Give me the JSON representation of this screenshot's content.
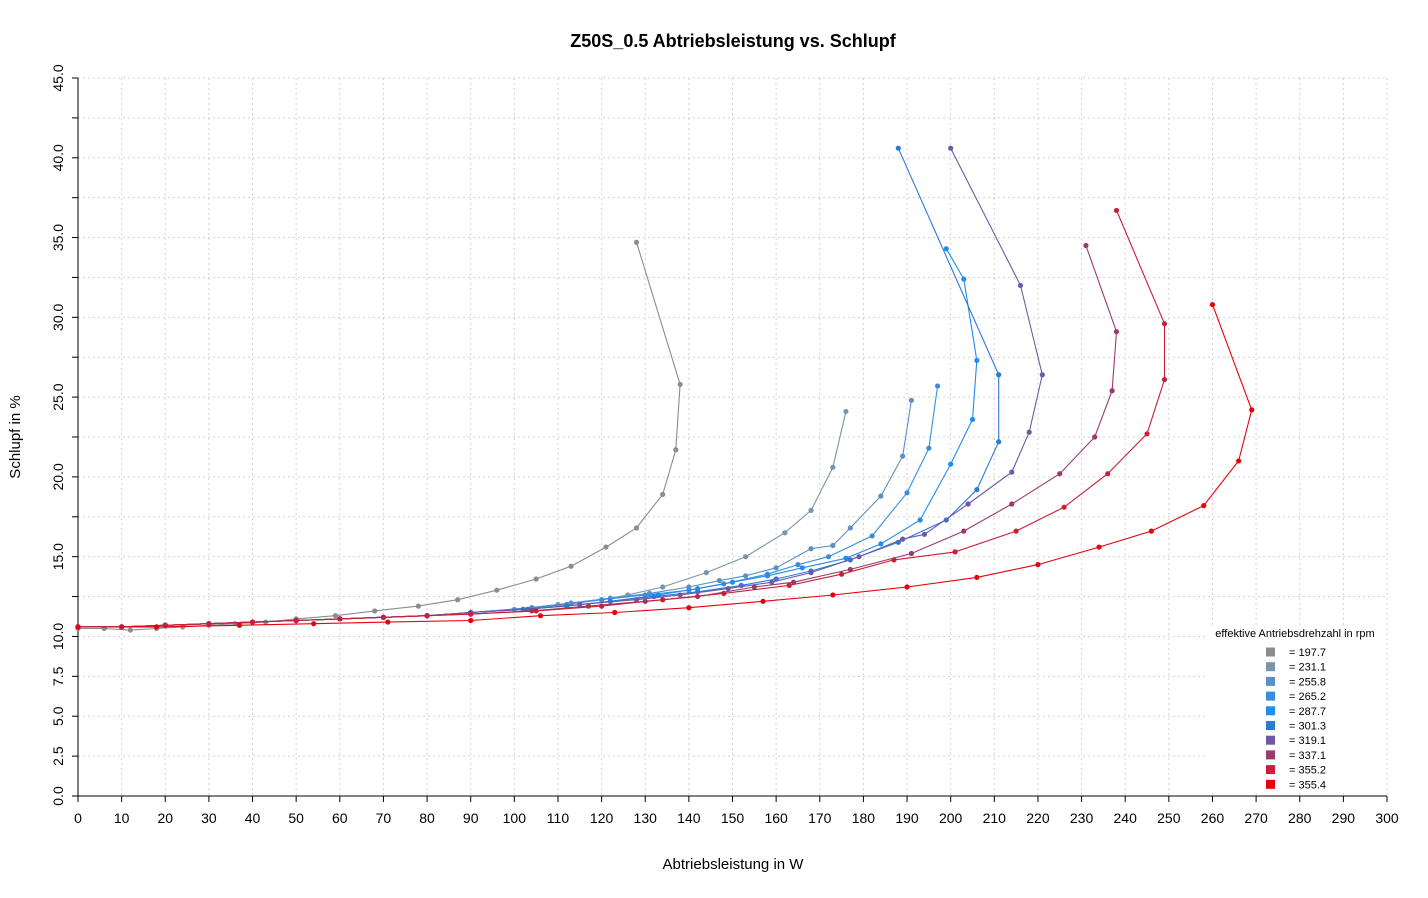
{
  "chart_data": {
    "type": "line",
    "title": "Z50S_0.5 Abtriebsleistung vs. Schlupf",
    "xlabel": "Abtriebsleistung in W",
    "ylabel": "Schlupf in %",
    "xlim": [
      0,
      300
    ],
    "ylim": [
      0,
      45
    ],
    "x_ticks": [
      "0",
      "10",
      "20",
      "30",
      "40",
      "50",
      "60",
      "70",
      "80",
      "90",
      "100",
      "110",
      "120",
      "130",
      "140",
      "150",
      "160",
      "170",
      "180",
      "190",
      "200",
      "210",
      "220",
      "230",
      "240",
      "250",
      "260",
      "270",
      "280",
      "290",
      "300"
    ],
    "y_ticks": [
      "0.0",
      "2.5",
      "5.0",
      "7.5",
      "10.0",
      "15.0",
      "20.0",
      "25.0",
      "30.0",
      "35.0",
      "40.0",
      "45.0"
    ],
    "grid": true,
    "legend_title": "effektive Antriebsdrehzahl in rpm",
    "legend_position": "bottom-right",
    "series": [
      {
        "name": "= 197.7",
        "color": "#8c8c8c",
        "points": [
          [
            0,
            10.5
          ],
          [
            6,
            10.5
          ],
          [
            12,
            10.4
          ],
          [
            18,
            10.5
          ],
          [
            24,
            10.6
          ],
          [
            30,
            10.7
          ],
          [
            36,
            10.8
          ],
          [
            43,
            10.9
          ],
          [
            50,
            11.1
          ],
          [
            59,
            11.3
          ],
          [
            68,
            11.6
          ],
          [
            78,
            11.9
          ],
          [
            87,
            12.3
          ],
          [
            96,
            12.9
          ],
          [
            105,
            13.6
          ],
          [
            113,
            14.4
          ],
          [
            121,
            15.6
          ],
          [
            128,
            16.8
          ],
          [
            134,
            18.9
          ],
          [
            137,
            21.7
          ],
          [
            138,
            25.8
          ],
          [
            128,
            34.7
          ]
        ]
      },
      {
        "name": "= 231.1",
        "color": "#7a95aa",
        "points": [
          [
            0,
            10.6
          ],
          [
            10,
            10.6
          ],
          [
            20,
            10.7
          ],
          [
            30,
            10.8
          ],
          [
            40,
            10.9
          ],
          [
            50,
            11.0
          ],
          [
            60,
            11.1
          ],
          [
            70,
            11.2
          ],
          [
            80,
            11.3
          ],
          [
            90,
            11.5
          ],
          [
            100,
            11.7
          ],
          [
            110,
            12.0
          ],
          [
            120,
            12.3
          ],
          [
            126,
            12.6
          ],
          [
            134,
            13.1
          ],
          [
            144,
            14.0
          ],
          [
            153,
            15.0
          ],
          [
            162,
            16.5
          ],
          [
            168,
            17.9
          ],
          [
            173,
            20.6
          ],
          [
            176,
            24.1
          ]
        ]
      },
      {
        "name": "= 255.8",
        "color": "#5b8fc5",
        "points": [
          [
            0,
            10.6
          ],
          [
            10,
            10.6
          ],
          [
            20,
            10.7
          ],
          [
            30,
            10.8
          ],
          [
            40,
            10.9
          ],
          [
            50,
            11.0
          ],
          [
            60,
            11.1
          ],
          [
            70,
            11.2
          ],
          [
            80,
            11.3
          ],
          [
            90,
            11.5
          ],
          [
            104,
            11.8
          ],
          [
            113,
            12.1
          ],
          [
            122,
            12.4
          ],
          [
            131,
            12.7
          ],
          [
            140,
            13.1
          ],
          [
            147,
            13.5
          ],
          [
            153,
            13.8
          ],
          [
            160,
            14.3
          ],
          [
            168,
            15.5
          ],
          [
            173,
            15.7
          ],
          [
            177,
            16.8
          ],
          [
            184,
            18.8
          ],
          [
            189,
            21.3
          ],
          [
            191,
            24.8
          ]
        ]
      },
      {
        "name": "= 265.2",
        "color": "#3a8ddb",
        "points": [
          [
            0,
            10.6
          ],
          [
            10,
            10.6
          ],
          [
            20,
            10.7
          ],
          [
            30,
            10.8
          ],
          [
            40,
            10.9
          ],
          [
            50,
            11.0
          ],
          [
            60,
            11.1
          ],
          [
            70,
            11.2
          ],
          [
            80,
            11.3
          ],
          [
            90,
            11.5
          ],
          [
            104,
            11.8
          ],
          [
            112,
            12.0
          ],
          [
            120,
            12.3
          ],
          [
            130,
            12.6
          ],
          [
            140,
            12.9
          ],
          [
            148,
            13.3
          ],
          [
            158,
            13.9
          ],
          [
            165,
            14.5
          ],
          [
            172,
            15.0
          ],
          [
            182,
            16.3
          ],
          [
            190,
            19.0
          ],
          [
            195,
            21.8
          ],
          [
            197,
            25.7
          ]
        ]
      },
      {
        "name": "= 287.7",
        "color": "#1f8ef0",
        "points": [
          [
            0,
            10.6
          ],
          [
            10,
            10.6
          ],
          [
            20,
            10.7
          ],
          [
            30,
            10.8
          ],
          [
            40,
            10.9
          ],
          [
            50,
            11.0
          ],
          [
            60,
            11.1
          ],
          [
            70,
            11.2
          ],
          [
            80,
            11.3
          ],
          [
            90,
            11.5
          ],
          [
            102,
            11.7
          ],
          [
            112,
            11.9
          ],
          [
            122,
            12.2
          ],
          [
            133,
            12.6
          ],
          [
            142,
            13.0
          ],
          [
            150,
            13.4
          ],
          [
            158,
            13.8
          ],
          [
            166,
            14.3
          ],
          [
            176,
            14.9
          ],
          [
            184,
            15.8
          ],
          [
            193,
            17.3
          ],
          [
            200,
            20.8
          ],
          [
            205,
            23.6
          ],
          [
            206,
            27.3
          ],
          [
            203,
            32.4
          ],
          [
            199,
            34.3
          ]
        ]
      },
      {
        "name": "= 301.3",
        "color": "#2f78d6",
        "points": [
          [
            0,
            10.6
          ],
          [
            10,
            10.6
          ],
          [
            20,
            10.7
          ],
          [
            30,
            10.8
          ],
          [
            40,
            10.9
          ],
          [
            50,
            11.0
          ],
          [
            60,
            11.1
          ],
          [
            70,
            11.2
          ],
          [
            80,
            11.3
          ],
          [
            90,
            11.5
          ],
          [
            102,
            11.7
          ],
          [
            112,
            11.9
          ],
          [
            122,
            12.2
          ],
          [
            132,
            12.5
          ],
          [
            142,
            12.8
          ],
          [
            152,
            13.2
          ],
          [
            160,
            13.6
          ],
          [
            168,
            14.1
          ],
          [
            177,
            14.8
          ],
          [
            188,
            15.9
          ],
          [
            199,
            17.3
          ],
          [
            206,
            19.2
          ],
          [
            211,
            22.2
          ],
          [
            211,
            26.4
          ],
          [
            188,
            40.6
          ]
        ]
      },
      {
        "name": "= 319.1",
        "color": "#6e59a9",
        "points": [
          [
            0,
            10.6
          ],
          [
            10,
            10.6
          ],
          [
            20,
            10.7
          ],
          [
            30,
            10.8
          ],
          [
            40,
            10.9
          ],
          [
            50,
            11.0
          ],
          [
            60,
            11.1
          ],
          [
            70,
            11.2
          ],
          [
            80,
            11.3
          ],
          [
            90,
            11.5
          ],
          [
            103,
            11.7
          ],
          [
            115,
            12.0
          ],
          [
            128,
            12.3
          ],
          [
            138,
            12.6
          ],
          [
            149,
            13.0
          ],
          [
            159,
            13.4
          ],
          [
            168,
            14.0
          ],
          [
            179,
            15.0
          ],
          [
            189,
            16.1
          ],
          [
            194,
            16.4
          ],
          [
            204,
            18.3
          ],
          [
            214,
            20.3
          ],
          [
            218,
            22.8
          ],
          [
            221,
            26.4
          ],
          [
            216,
            32.0
          ],
          [
            200,
            40.6
          ]
        ]
      },
      {
        "name": "= 337.1",
        "color": "#9b3a6e",
        "points": [
          [
            0,
            10.6
          ],
          [
            10,
            10.6
          ],
          [
            20,
            10.7
          ],
          [
            30,
            10.8
          ],
          [
            40,
            10.9
          ],
          [
            50,
            11.0
          ],
          [
            60,
            11.1
          ],
          [
            70,
            11.2
          ],
          [
            80,
            11.3
          ],
          [
            90,
            11.4
          ],
          [
            104,
            11.6
          ],
          [
            117,
            11.9
          ],
          [
            130,
            12.2
          ],
          [
            142,
            12.5
          ],
          [
            155,
            13.1
          ],
          [
            164,
            13.4
          ],
          [
            177,
            14.2
          ],
          [
            191,
            15.2
          ],
          [
            203,
            16.6
          ],
          [
            214,
            18.3
          ],
          [
            225,
            20.2
          ],
          [
            233,
            22.5
          ],
          [
            237,
            25.4
          ],
          [
            238,
            29.1
          ],
          [
            231,
            34.5
          ]
        ]
      },
      {
        "name": "= 355.2",
        "color": "#c8203a",
        "points": [
          [
            0,
            10.6
          ],
          [
            10,
            10.6
          ],
          [
            20,
            10.7
          ],
          [
            30,
            10.8
          ],
          [
            40,
            10.9
          ],
          [
            50,
            11.0
          ],
          [
            60,
            11.1
          ],
          [
            70,
            11.2
          ],
          [
            80,
            11.3
          ],
          [
            90,
            11.4
          ],
          [
            105,
            11.6
          ],
          [
            120,
            11.9
          ],
          [
            134,
            12.3
          ],
          [
            148,
            12.7
          ],
          [
            163,
            13.2
          ],
          [
            175,
            13.9
          ],
          [
            187,
            14.8
          ],
          [
            201,
            15.3
          ],
          [
            215,
            16.6
          ],
          [
            226,
            18.1
          ],
          [
            236,
            20.2
          ],
          [
            245,
            22.7
          ],
          [
            249,
            26.1
          ],
          [
            249,
            29.6
          ],
          [
            238,
            36.7
          ]
        ]
      },
      {
        "name": "= 355.4",
        "color": "#e8000b",
        "points": [
          [
            0,
            10.6
          ],
          [
            18,
            10.6
          ],
          [
            37,
            10.7
          ],
          [
            54,
            10.8
          ],
          [
            71,
            10.9
          ],
          [
            90,
            11.0
          ],
          [
            106,
            11.3
          ],
          [
            123,
            11.5
          ],
          [
            140,
            11.8
          ],
          [
            157,
            12.2
          ],
          [
            173,
            12.6
          ],
          [
            190,
            13.1
          ],
          [
            206,
            13.7
          ],
          [
            220,
            14.5
          ],
          [
            234,
            15.6
          ],
          [
            246,
            16.6
          ],
          [
            258,
            18.2
          ],
          [
            266,
            21.0
          ],
          [
            269,
            24.2
          ],
          [
            260,
            30.8
          ]
        ]
      }
    ]
  }
}
